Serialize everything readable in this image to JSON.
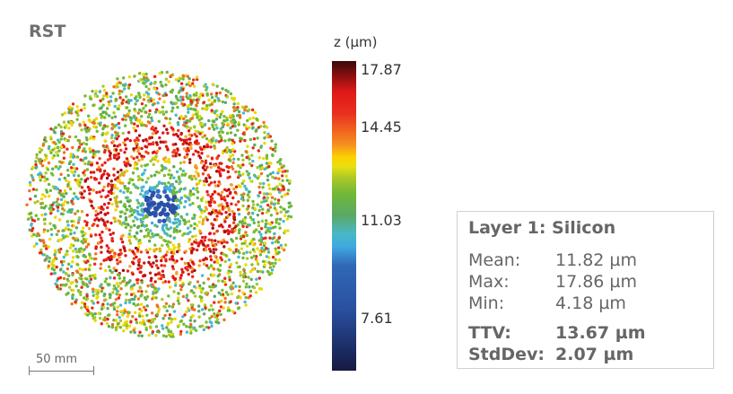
{
  "title": "RST",
  "chart_data": {
    "type": "scatter",
    "colorbar": {
      "label": "z (µm)",
      "ticks": [
        "17.87",
        "14.45",
        "11.03",
        "7.61"
      ],
      "range": [
        4.18,
        17.87
      ],
      "colormap": "jet"
    },
    "scale_bar": "50 mm"
  },
  "stats": {
    "heading": "Layer 1: Silicon",
    "rows": [
      {
        "label": "Mean:",
        "value": "11.82 µm",
        "bold": false
      },
      {
        "label": "Max:",
        "value": "17.86 µm",
        "bold": false
      },
      {
        "label": "Min:",
        "value": "4.18 µm",
        "bold": false
      },
      {
        "label": "TTV:",
        "value": "13.67 µm",
        "bold": true
      },
      {
        "label": "StdDev:",
        "value": "2.07 µm",
        "bold": true
      }
    ]
  }
}
